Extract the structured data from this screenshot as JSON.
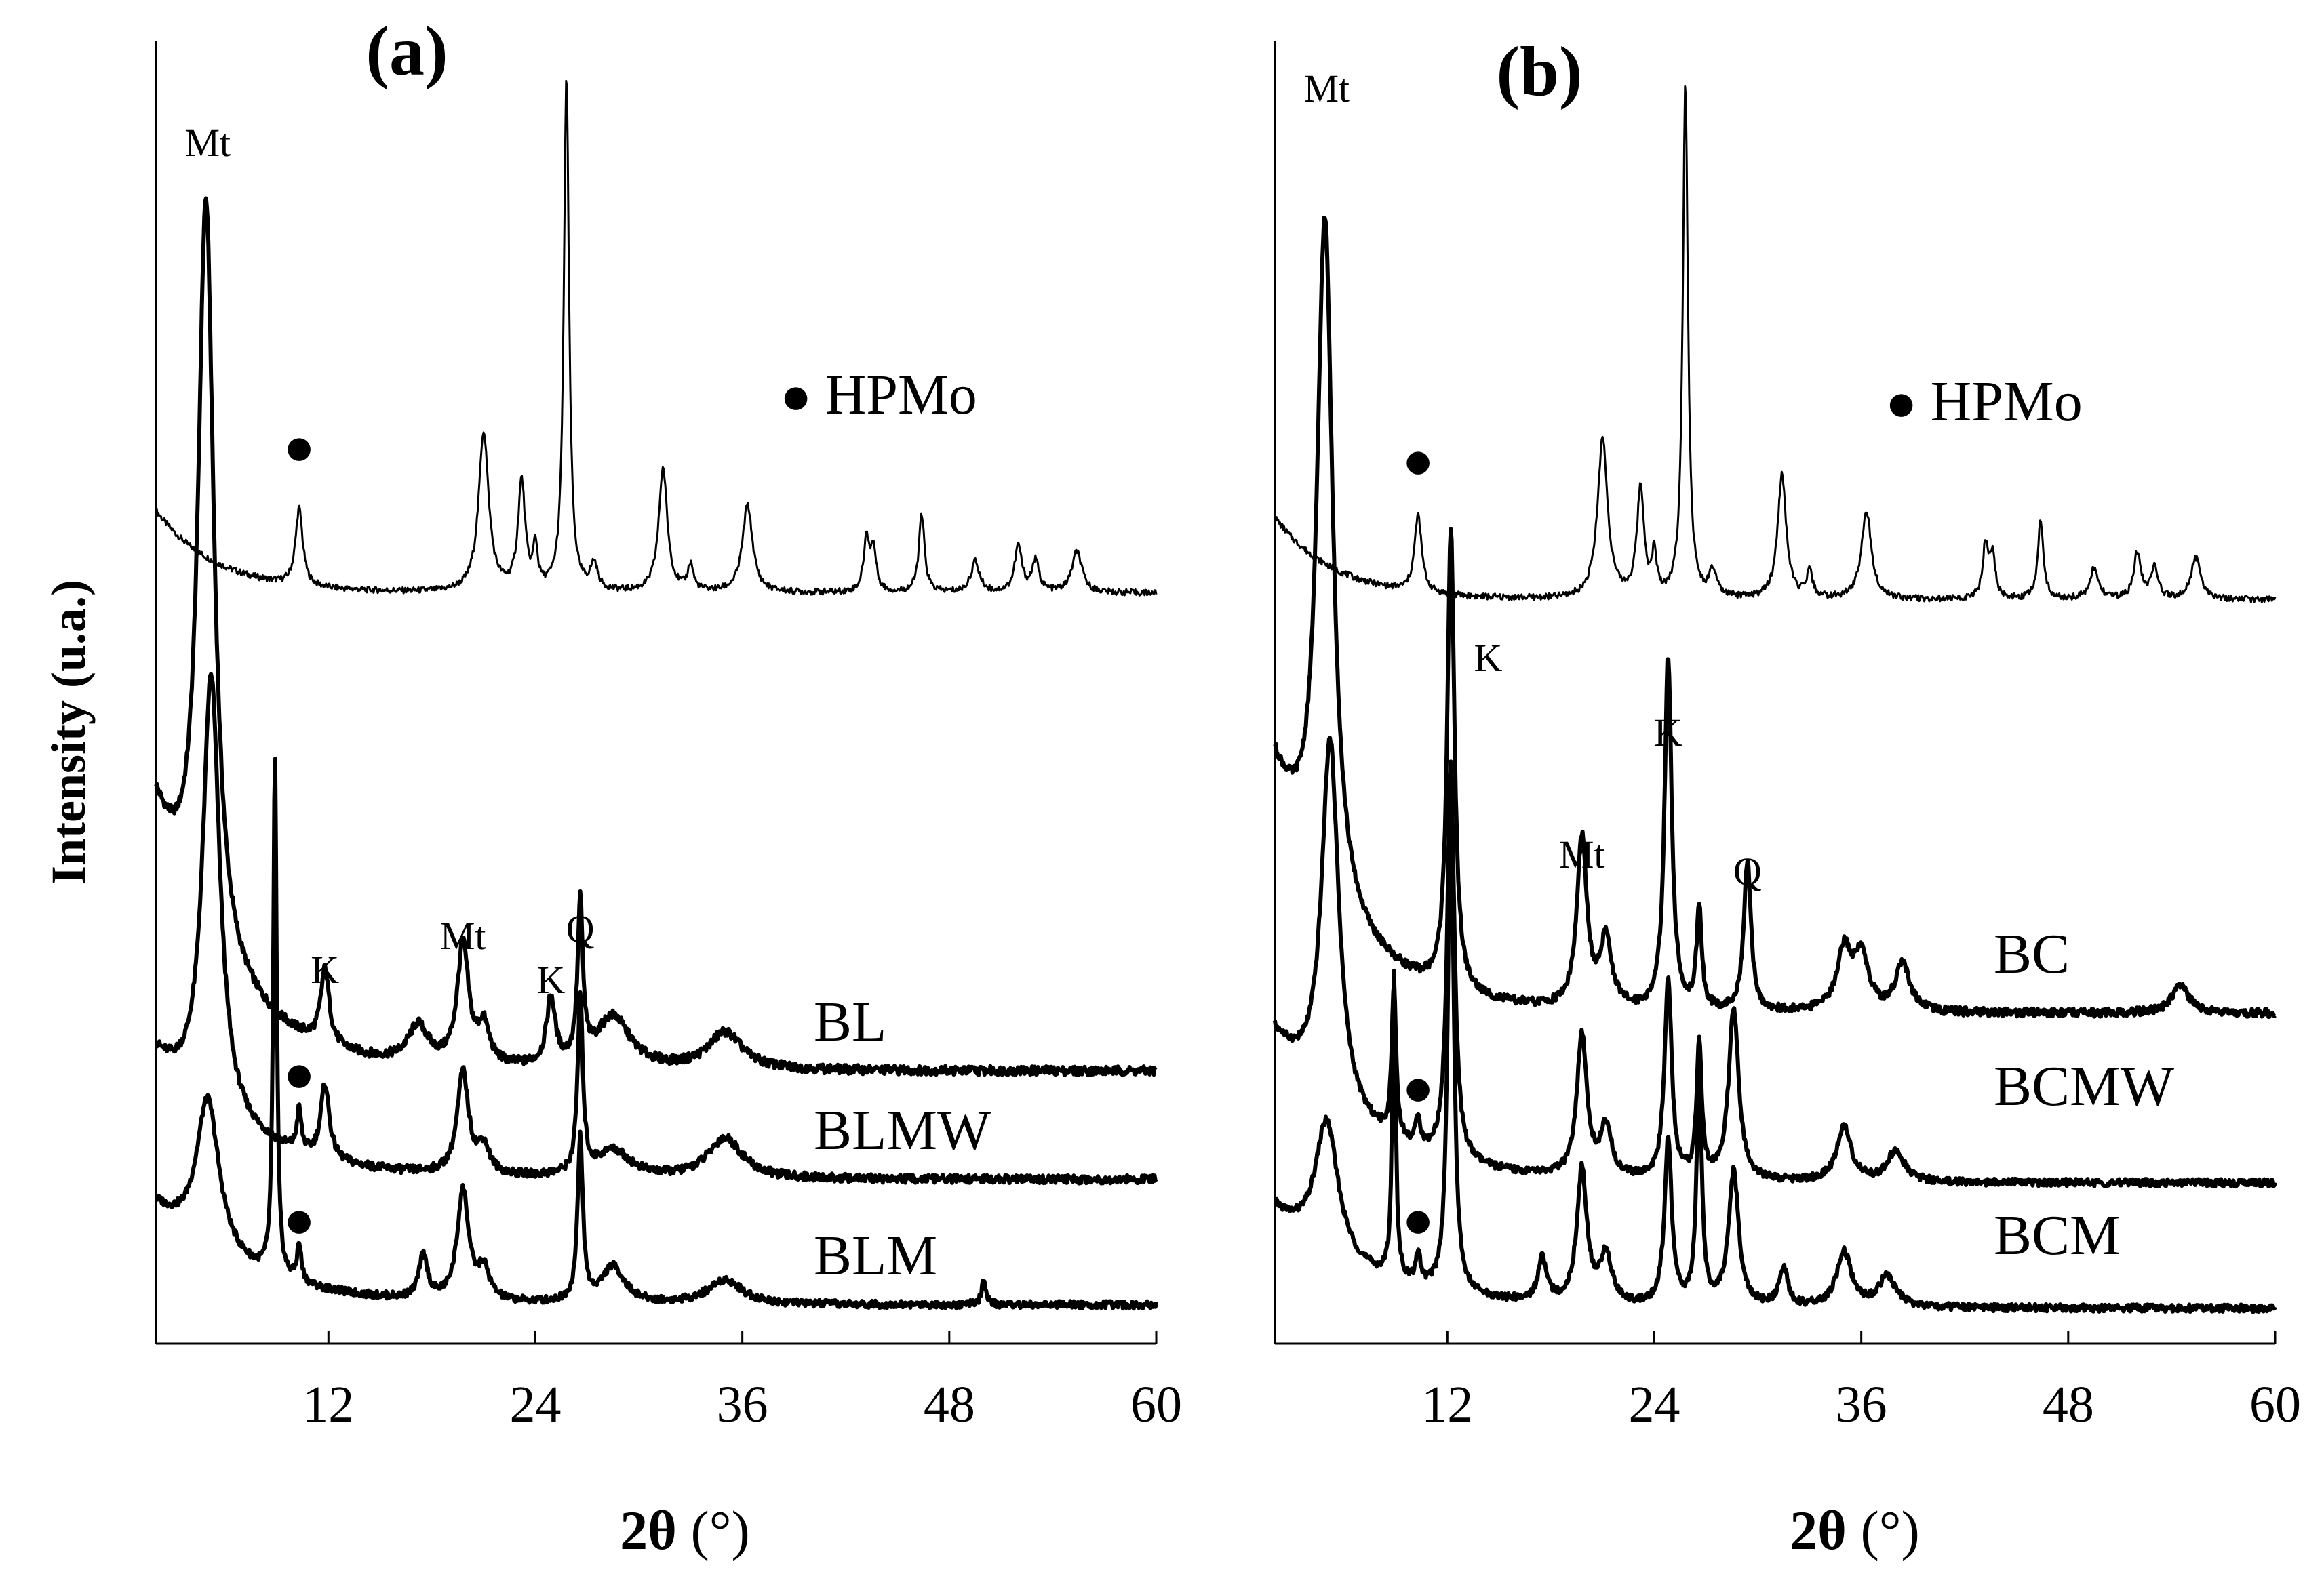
{
  "chart_data": [
    {
      "type": "line",
      "panel_label": "(a)",
      "xlabel_symbol": "2θ",
      "xlabel_unit": "(°)",
      "ylabel": "Intensity (u.a.)",
      "xlim": [
        2,
        60
      ],
      "xticks": [
        12,
        24,
        36,
        48,
        60
      ],
      "series": [
        {
          "name": "HPMo",
          "marker": "●",
          "peaks": [
            {
              "x": 10.3,
              "h": 0.15,
              "w": 0.25
            },
            {
              "x": 21.0,
              "h": 0.31,
              "w": 0.35
            },
            {
              "x": 23.2,
              "h": 0.21,
              "w": 0.25
            },
            {
              "x": 24.0,
              "h": 0.08,
              "w": 0.15
            },
            {
              "x": 25.8,
              "h": 1.0,
              "w": 0.18
            },
            {
              "x": 27.4,
              "h": 0.05,
              "w": 0.25
            },
            {
              "x": 31.4,
              "h": 0.24,
              "w": 0.3
            },
            {
              "x": 33.0,
              "h": 0.05,
              "w": 0.2
            },
            {
              "x": 36.3,
              "h": 0.17,
              "w": 0.35
            },
            {
              "x": 43.2,
              "h": 0.1,
              "w": 0.2
            },
            {
              "x": 43.6,
              "h": 0.08,
              "w": 0.2
            },
            {
              "x": 46.4,
              "h": 0.15,
              "w": 0.2
            },
            {
              "x": 49.5,
              "h": 0.06,
              "w": 0.3
            },
            {
              "x": 52.0,
              "h": 0.09,
              "w": 0.25
            },
            {
              "x": 53.0,
              "h": 0.06,
              "w": 0.25
            },
            {
              "x": 55.4,
              "h": 0.08,
              "w": 0.35
            }
          ],
          "baseline_start": 0.16,
          "baseline_decay": 3.5
        },
        {
          "name": "BL",
          "peaks": [
            {
              "x": 4.9,
              "h": 1.0,
              "w": 0.55
            },
            {
              "x": 11.8,
              "h": 0.1,
              "w": 0.3
            },
            {
              "x": 17.2,
              "h": 0.05,
              "w": 0.7
            },
            {
              "x": 19.8,
              "h": 0.16,
              "w": 0.4
            },
            {
              "x": 21.0,
              "h": 0.05,
              "w": 0.4
            },
            {
              "x": 24.9,
              "h": 0.09,
              "w": 0.3
            },
            {
              "x": 26.6,
              "h": 0.21,
              "w": 0.18
            },
            {
              "x": 28.5,
              "h": 0.07,
              "w": 1.2
            },
            {
              "x": 35.0,
              "h": 0.05,
              "w": 1.2
            }
          ],
          "baseline_start": 0.35,
          "baseline_decay": 4.0
        },
        {
          "name": "BLMW",
          "marker": "●",
          "peaks": [
            {
              "x": 5.2,
              "h": 0.65,
              "w": 0.6
            },
            {
              "x": 10.3,
              "h": 0.06,
              "w": 0.15
            },
            {
              "x": 11.8,
              "h": 0.11,
              "w": 0.3
            },
            {
              "x": 19.8,
              "h": 0.15,
              "w": 0.4
            },
            {
              "x": 21.0,
              "h": 0.04,
              "w": 0.4
            },
            {
              "x": 26.6,
              "h": 0.26,
              "w": 0.18
            },
            {
              "x": 28.5,
              "h": 0.04,
              "w": 1.2
            },
            {
              "x": 35.0,
              "h": 0.06,
              "w": 1.2
            }
          ],
          "baseline_start": 0.18,
          "baseline_decay": 5.0
        },
        {
          "name": "BLM",
          "marker": "●",
          "peaks": [
            {
              "x": 5.0,
              "h": 0.25,
              "w": 0.8
            },
            {
              "x": 8.9,
              "h": 0.85,
              "w": 0.12
            },
            {
              "x": 10.3,
              "h": 0.06,
              "w": 0.15
            },
            {
              "x": 17.5,
              "h": 0.07,
              "w": 0.3
            },
            {
              "x": 19.8,
              "h": 0.18,
              "w": 0.4
            },
            {
              "x": 21.0,
              "h": 0.05,
              "w": 0.4
            },
            {
              "x": 26.6,
              "h": 0.27,
              "w": 0.18
            },
            {
              "x": 28.5,
              "h": 0.06,
              "w": 0.8
            },
            {
              "x": 35.0,
              "h": 0.04,
              "w": 1.2
            },
            {
              "x": 50.0,
              "h": 0.04,
              "w": 0.15
            }
          ],
          "baseline_start": 0.16,
          "baseline_decay": 5.0
        }
      ],
      "annotations": [
        {
          "text": "Mt",
          "x": 5.0
        },
        {
          "text": "K",
          "x": 11.8
        },
        {
          "text": "Mt",
          "x": 19.8
        },
        {
          "text": "K",
          "x": 24.9
        },
        {
          "text": "Q",
          "x": 26.6
        }
      ]
    },
    {
      "type": "line",
      "panel_label": "(b)",
      "xlabel_symbol": "2θ",
      "xlabel_unit": "(°)",
      "xlim": [
        2,
        60
      ],
      "xticks": [
        12,
        24,
        36,
        48,
        60
      ],
      "series": [
        {
          "name": "HPMo",
          "marker": "●",
          "peaks": [
            {
              "x": 10.3,
              "h": 0.15,
              "w": 0.25
            },
            {
              "x": 21.0,
              "h": 0.31,
              "w": 0.35
            },
            {
              "x": 23.2,
              "h": 0.21,
              "w": 0.25
            },
            {
              "x": 24.0,
              "h": 0.08,
              "w": 0.15
            },
            {
              "x": 25.8,
              "h": 1.0,
              "w": 0.18
            },
            {
              "x": 27.4,
              "h": 0.05,
              "w": 0.25
            },
            {
              "x": 31.4,
              "h": 0.24,
              "w": 0.3
            },
            {
              "x": 33.0,
              "h": 0.05,
              "w": 0.2
            },
            {
              "x": 36.3,
              "h": 0.17,
              "w": 0.35
            },
            {
              "x": 43.2,
              "h": 0.1,
              "w": 0.2
            },
            {
              "x": 43.6,
              "h": 0.08,
              "w": 0.2
            },
            {
              "x": 46.4,
              "h": 0.15,
              "w": 0.2
            },
            {
              "x": 49.5,
              "h": 0.06,
              "w": 0.3
            },
            {
              "x": 52.0,
              "h": 0.09,
              "w": 0.25
            },
            {
              "x": 53.0,
              "h": 0.06,
              "w": 0.25
            },
            {
              "x": 55.4,
              "h": 0.08,
              "w": 0.35
            }
          ],
          "baseline_start": 0.16,
          "baseline_decay": 3.5
        },
        {
          "name": "BC",
          "peaks": [
            {
              "x": 4.9,
              "h": 1.0,
              "w": 0.55
            },
            {
              "x": 12.2,
              "h": 0.68,
              "w": 0.25
            },
            {
              "x": 19.8,
              "h": 0.25,
              "w": 0.35
            },
            {
              "x": 21.2,
              "h": 0.1,
              "w": 0.4
            },
            {
              "x": 24.8,
              "h": 0.52,
              "w": 0.25
            },
            {
              "x": 26.6,
              "h": 0.15,
              "w": 0.18
            },
            {
              "x": 29.4,
              "h": 0.22,
              "w": 0.25
            },
            {
              "x": 35.0,
              "h": 0.09,
              "w": 0.5
            },
            {
              "x": 36.0,
              "h": 0.08,
              "w": 0.5
            },
            {
              "x": 38.4,
              "h": 0.07,
              "w": 0.5
            },
            {
              "x": 54.5,
              "h": 0.04,
              "w": 0.6
            }
          ],
          "baseline_start": 0.36,
          "baseline_decay": 4.0
        },
        {
          "name": "BCMW",
          "marker": "●",
          "peaks": [
            {
              "x": 5.2,
              "h": 0.6,
              "w": 0.6
            },
            {
              "x": 8.9,
              "h": 0.25,
              "w": 0.15
            },
            {
              "x": 10.3,
              "h": 0.05,
              "w": 0.15
            },
            {
              "x": 12.2,
              "h": 0.65,
              "w": 0.25
            },
            {
              "x": 19.8,
              "h": 0.23,
              "w": 0.35
            },
            {
              "x": 21.2,
              "h": 0.08,
              "w": 0.4
            },
            {
              "x": 24.8,
              "h": 0.33,
              "w": 0.25
            },
            {
              "x": 26.6,
              "h": 0.22,
              "w": 0.18
            },
            {
              "x": 28.6,
              "h": 0.28,
              "w": 0.35
            },
            {
              "x": 35.0,
              "h": 0.09,
              "w": 0.5
            },
            {
              "x": 38.0,
              "h": 0.05,
              "w": 0.6
            }
          ],
          "baseline_start": 0.24,
          "baseline_decay": 5.0
        },
        {
          "name": "BCM",
          "marker": "●",
          "peaks": [
            {
              "x": 5.0,
              "h": 0.22,
              "w": 0.8
            },
            {
              "x": 8.9,
              "h": 0.5,
              "w": 0.12
            },
            {
              "x": 10.3,
              "h": 0.05,
              "w": 0.15
            },
            {
              "x": 12.2,
              "h": 0.85,
              "w": 0.2
            },
            {
              "x": 17.5,
              "h": 0.07,
              "w": 0.3
            },
            {
              "x": 19.8,
              "h": 0.22,
              "w": 0.35
            },
            {
              "x": 21.2,
              "h": 0.08,
              "w": 0.4
            },
            {
              "x": 24.8,
              "h": 0.27,
              "w": 0.25
            },
            {
              "x": 26.6,
              "h": 0.38,
              "w": 0.18
            },
            {
              "x": 28.6,
              "h": 0.22,
              "w": 0.35
            },
            {
              "x": 31.5,
              "h": 0.06,
              "w": 0.3
            },
            {
              "x": 35.0,
              "h": 0.09,
              "w": 0.5
            },
            {
              "x": 37.5,
              "h": 0.05,
              "w": 0.6
            }
          ],
          "baseline_start": 0.16,
          "baseline_decay": 5.0
        }
      ],
      "annotations": [
        {
          "text": "Mt",
          "x": 5.0
        },
        {
          "text": "K",
          "x": 12.2
        },
        {
          "text": "Mt",
          "x": 19.8
        },
        {
          "text": "K",
          "x": 24.8
        },
        {
          "text": "Q",
          "x": 29.4
        }
      ]
    }
  ]
}
